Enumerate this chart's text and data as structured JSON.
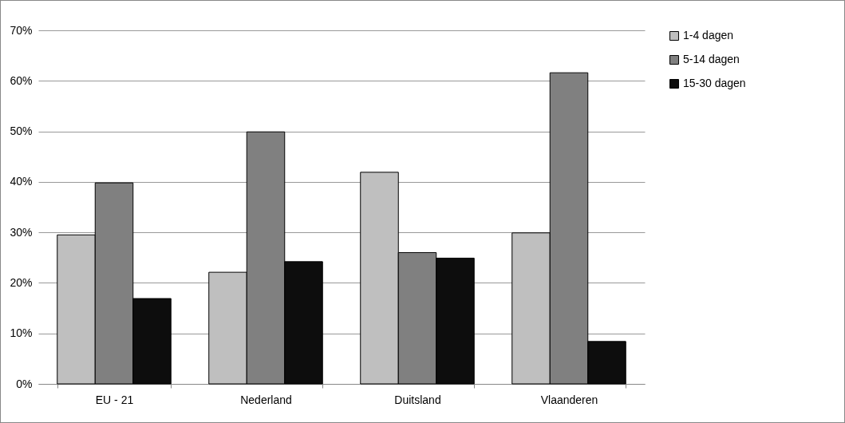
{
  "chart_data": {
    "type": "bar",
    "categories": [
      "EU - 21",
      "Nederland",
      "Duitsland",
      "Vlaanderen"
    ],
    "series": [
      {
        "name": "1-4 dagen",
        "color": "#bfbfbf",
        "values": [
          29.5,
          22.1,
          41.9,
          29.9
        ]
      },
      {
        "name": "5-14 dagen",
        "color": "#808080",
        "values": [
          39.8,
          49.9,
          26.0,
          61.6
        ]
      },
      {
        "name": "15-30 dagen",
        "color": "#0d0d0d",
        "values": [
          16.9,
          24.2,
          24.9,
          8.4
        ]
      }
    ],
    "ylim": [
      0,
      70
    ],
    "yticks": [
      {
        "value": 0,
        "label": "0%"
      },
      {
        "value": 10,
        "label": "10%"
      },
      {
        "value": 20,
        "label": "20%"
      },
      {
        "value": 30,
        "label": "30%"
      },
      {
        "value": 40,
        "label": "40%"
      },
      {
        "value": 50,
        "label": "50%"
      },
      {
        "value": 60,
        "label": "60%"
      },
      {
        "value": 70,
        "label": "70%"
      }
    ],
    "grid": "y",
    "legend": "right"
  }
}
